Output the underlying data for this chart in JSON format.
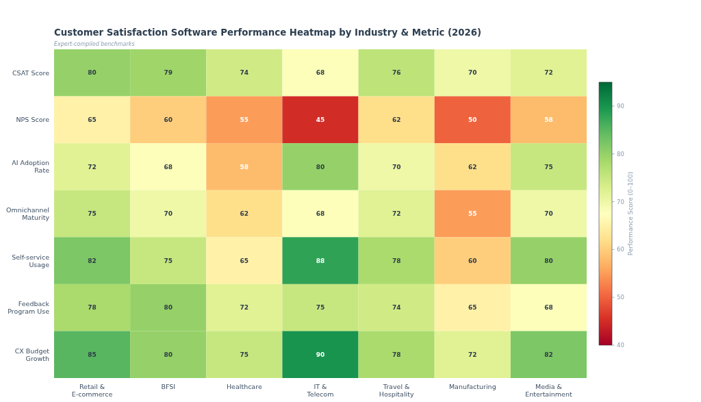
{
  "chart_data": {
    "type": "heatmap",
    "title": "Customer Satisfaction Software Performance Heatmap by Industry & Metric (2026)",
    "subtitle": "Expert-compiled benchmarks",
    "categories": [
      "Retail &\nE-commerce",
      "BFSI",
      "Healthcare",
      "IT &\nTelecom",
      "Travel &\nHospitality",
      "Manufacturing",
      "Media &\nEntertainment"
    ],
    "y_categories": [
      "CSAT Score",
      "NPS Score",
      "AI Adoption\nRate",
      "Omnichannel\nMaturity",
      "Self-service\nUsage",
      "Feedback\nProgram Use",
      "CX Budget\nGrowth"
    ],
    "cells": [
      [
        80,
        79,
        74,
        68,
        76,
        70,
        72
      ],
      [
        65,
        60,
        55,
        45,
        62,
        50,
        58
      ],
      [
        72,
        68,
        58,
        80,
        70,
        62,
        75
      ],
      [
        75,
        70,
        62,
        68,
        72,
        55,
        70
      ],
      [
        82,
        75,
        65,
        88,
        78,
        60,
        80
      ],
      [
        78,
        80,
        72,
        75,
        74,
        65,
        68
      ],
      [
        85,
        80,
        75,
        90,
        78,
        72,
        82
      ]
    ],
    "clim": [
      40,
      95
    ],
    "cticks": [
      40,
      50,
      60,
      70,
      80,
      90
    ],
    "clabel": "Performance Score (0–100)",
    "data_labels": true
  }
}
